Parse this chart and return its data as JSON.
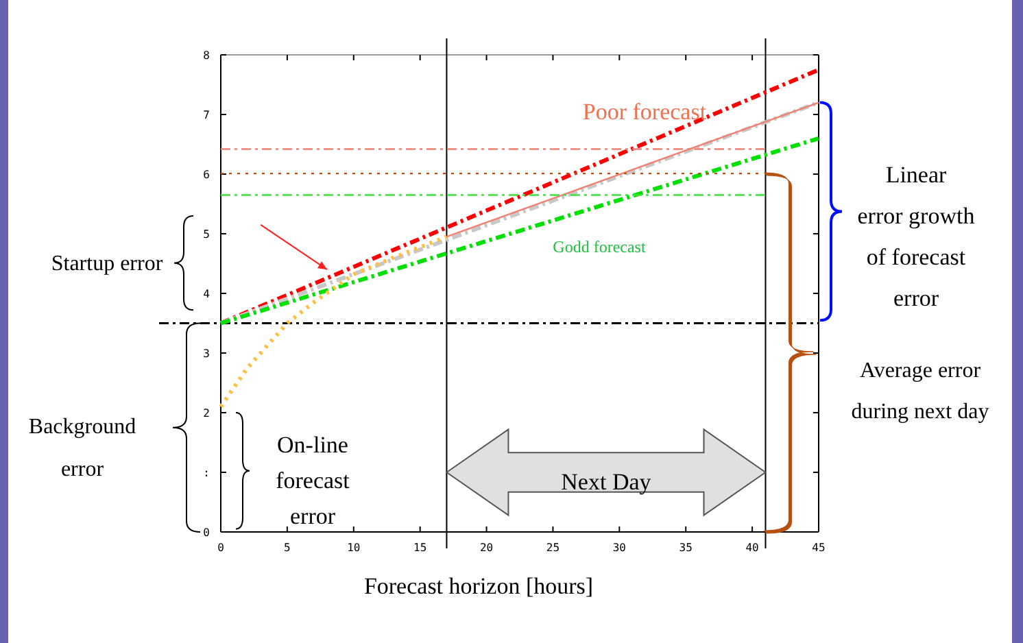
{
  "chart_data": {
    "type": "line",
    "xlabel": "Forecast horizon [hours]",
    "xlim": [
      0,
      45
    ],
    "ylim": [
      0,
      8
    ],
    "xticks": [
      0,
      5,
      10,
      15,
      20,
      25,
      30,
      35,
      40,
      45
    ],
    "yticks": [
      0,
      {
        "value": 1,
        "label": ":"
      },
      2,
      3,
      4,
      5,
      6,
      7,
      8
    ],
    "grid": false,
    "marker": "none",
    "series": [
      {
        "color": "#ff0000",
        "line_style": "dashed",
        "x": [
          0,
          45
        ],
        "values": [
          3.5,
          7.75
        ]
      },
      {
        "color": "#c8c8c8",
        "line_style": "dashed",
        "x": [
          0,
          45
        ],
        "values": [
          3.5,
          7.2
        ]
      },
      {
        "color": "#f08070",
        "line_style": "solid",
        "x": [
          17,
          45
        ],
        "values": [
          4.95,
          7.2
        ]
      },
      {
        "color": "#00e000",
        "line_style": "dashed",
        "x": [
          0,
          45
        ],
        "values": [
          3.5,
          6.6
        ]
      },
      {
        "color": "#ffc040",
        "line_style": "dotted",
        "x": [
          0,
          2,
          5,
          7,
          10,
          13,
          17
        ],
        "values": [
          2.1,
          2.75,
          3.5,
          3.85,
          4.32,
          4.6,
          4.95
        ]
      },
      {
        "color": "#f08070",
        "line_style": "dashed",
        "x": [
          0,
          41
        ],
        "values": [
          6.42,
          6.42
        ]
      },
      {
        "color": "#b85010",
        "line_style": "dotted",
        "x": [
          0,
          40.5
        ],
        "values": [
          6.01,
          6.01
        ]
      },
      {
        "color": "#40e040",
        "line_style": "dashed",
        "x": [
          0,
          41
        ],
        "values": [
          5.65,
          5.65
        ]
      }
    ],
    "ref_lines": [
      {
        "axis": "y",
        "value": 3.5,
        "color": "#000000",
        "line_style": "dashed"
      },
      {
        "axis": "x",
        "value": 17,
        "color": "#000000",
        "line_style": "solid"
      },
      {
        "axis": "x",
        "value": 41,
        "color": "#000000",
        "line_style": "solid"
      }
    ],
    "annotations": [
      "Poor forecast",
      "Godd forecast",
      "Startup error",
      "Background error",
      "On-line forecast error",
      "Next Day",
      "Linear error growth of forecast error",
      "Average error during next day"
    ]
  }
}
